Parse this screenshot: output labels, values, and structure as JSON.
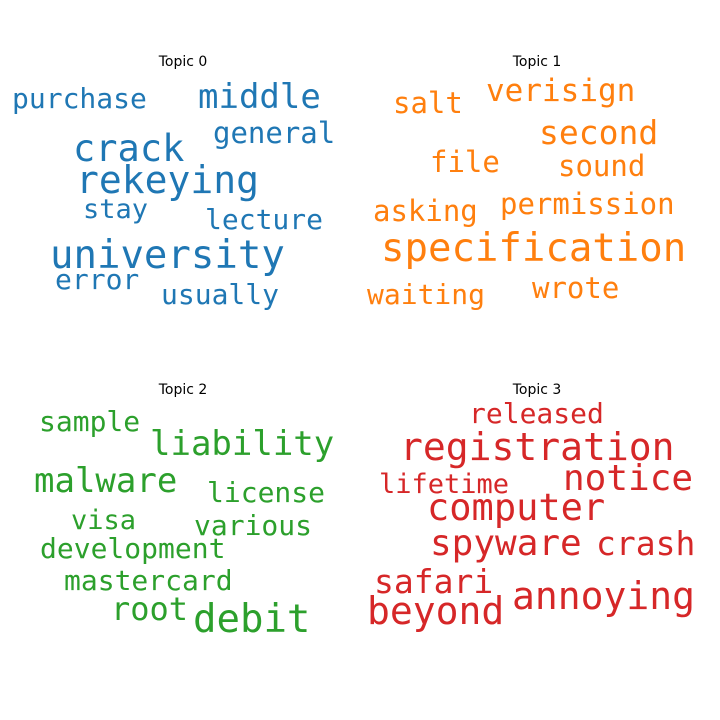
{
  "chart_data": [
    {
      "type": "wordcloud",
      "title": "Topic 0",
      "color": "#1f77b4",
      "words": [
        {
          "text": "university",
          "weight": 1.0
        },
        {
          "text": "rekeying",
          "weight": 0.97
        },
        {
          "text": "crack",
          "weight": 0.95
        },
        {
          "text": "middle",
          "weight": 0.88
        },
        {
          "text": "general",
          "weight": 0.78
        },
        {
          "text": "purchase",
          "weight": 0.75
        },
        {
          "text": "lecture",
          "weight": 0.74
        },
        {
          "text": "usually",
          "weight": 0.73
        },
        {
          "text": "error",
          "weight": 0.73
        },
        {
          "text": "stay",
          "weight": 0.7
        }
      ]
    },
    {
      "type": "wordcloud",
      "title": "Topic 1",
      "color": "#ff7f0e",
      "words": [
        {
          "text": "specification",
          "weight": 1.0
        },
        {
          "text": "second",
          "weight": 0.85
        },
        {
          "text": "verisign",
          "weight": 0.8
        },
        {
          "text": "permission",
          "weight": 0.77
        },
        {
          "text": "sound",
          "weight": 0.77
        },
        {
          "text": "salt",
          "weight": 0.77
        },
        {
          "text": "file",
          "weight": 0.77
        },
        {
          "text": "wrote",
          "weight": 0.76
        },
        {
          "text": "asking",
          "weight": 0.76
        },
        {
          "text": "waiting",
          "weight": 0.75
        }
      ]
    },
    {
      "type": "wordcloud",
      "title": "Topic 2",
      "color": "#2ca02c",
      "words": [
        {
          "text": "debit",
          "weight": 1.0
        },
        {
          "text": "liability",
          "weight": 0.87
        },
        {
          "text": "malware",
          "weight": 0.87
        },
        {
          "text": "root",
          "weight": 0.82
        },
        {
          "text": "license",
          "weight": 0.74
        },
        {
          "text": "sample",
          "weight": 0.72
        },
        {
          "text": "various",
          "weight": 0.72
        },
        {
          "text": "development",
          "weight": 0.72
        },
        {
          "text": "mastercard",
          "weight": 0.72
        },
        {
          "text": "visa",
          "weight": 0.7
        }
      ]
    },
    {
      "type": "wordcloud",
      "title": "Topic 3",
      "color": "#d62728",
      "words": [
        {
          "text": "registration",
          "weight": 1.0
        },
        {
          "text": "annoying",
          "weight": 0.98
        },
        {
          "text": "beyond",
          "weight": 0.97
        },
        {
          "text": "computer",
          "weight": 0.95
        },
        {
          "text": "spyware",
          "weight": 0.93
        },
        {
          "text": "notice",
          "weight": 0.92
        },
        {
          "text": "safari",
          "weight": 0.86
        },
        {
          "text": "crash",
          "weight": 0.85
        },
        {
          "text": "released",
          "weight": 0.72
        },
        {
          "text": "lifetime",
          "weight": 0.7
        }
      ]
    }
  ]
}
